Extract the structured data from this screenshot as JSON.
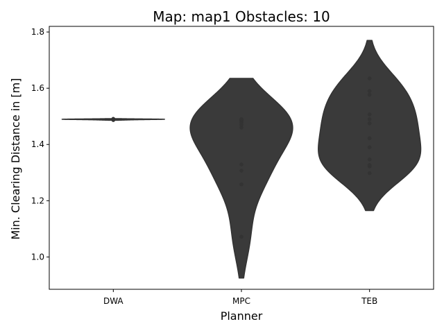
{
  "chart_data": {
    "type": "violin",
    "title": "Map: map1 Obstacles: 10",
    "xlabel": "Planner",
    "ylabel": "Min. Clearing Distance in [m]",
    "categories": [
      "DWA",
      "MPC",
      "TEB"
    ],
    "ylim": [
      0.885,
      1.82
    ],
    "yticks": [
      1.0,
      1.2,
      1.4,
      1.6,
      1.8
    ],
    "ytick_labels": [
      "1.0",
      "1.2",
      "1.4",
      "1.6",
      "1.8"
    ],
    "grid": false,
    "legend": "none",
    "colors": {
      "body": "#3a3a3a",
      "stroke": "#333333",
      "axis": "#000000"
    },
    "series": [
      {
        "category": "DWA",
        "range": [
          1.486,
          1.492
        ],
        "points": [
          1.488,
          1.489,
          1.489,
          1.49,
          1.49,
          1.49,
          1.491,
          1.487,
          1.489,
          1.49
        ]
      },
      {
        "category": "MPC",
        "range": [
          0.925,
          1.635
        ],
        "points": [
          1.072,
          1.258,
          1.307,
          1.329,
          1.46,
          1.47,
          1.478,
          1.483,
          1.487,
          1.49
        ]
      },
      {
        "category": "TEB",
        "range": [
          1.165,
          1.77
        ],
        "points": [
          1.298,
          1.322,
          1.327,
          1.347,
          1.39,
          1.422,
          1.475,
          1.49,
          1.507,
          1.577,
          1.59,
          1.635
        ]
      }
    ]
  }
}
